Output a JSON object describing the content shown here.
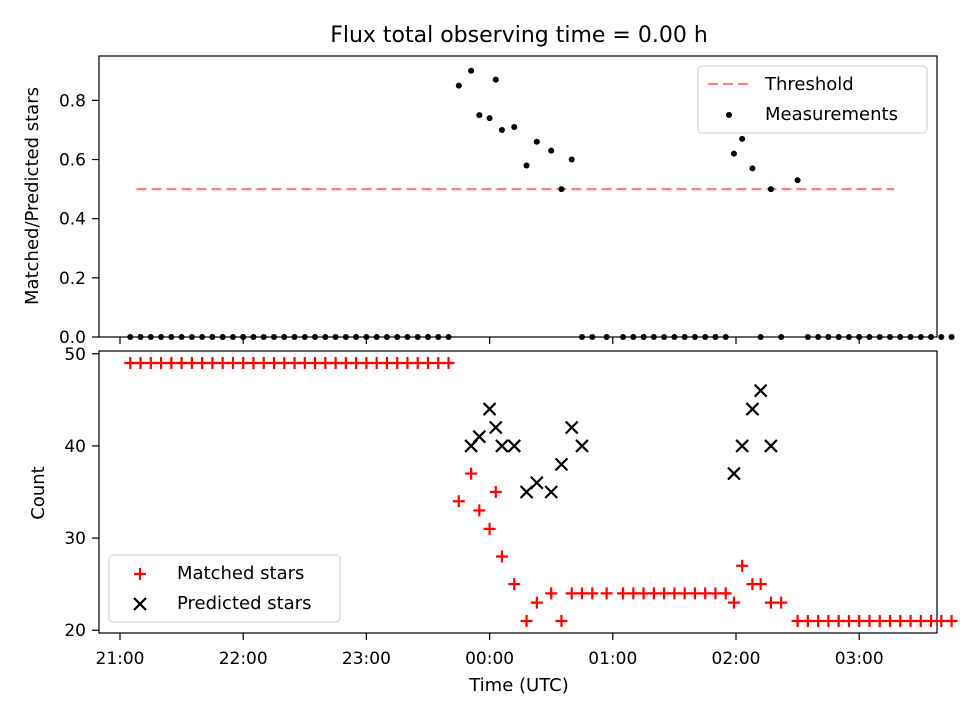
{
  "figure": {
    "title": "Flux total observing time = 0.00 h"
  },
  "chart_data": [
    {
      "type": "scatter",
      "title": "Flux total observing time = 0.00 h",
      "xlabel": "",
      "ylabel": "Matched/Predicted stars",
      "x_axis": "time (hours after 21:00 UTC, day wraps at 24:00)",
      "ylim": [
        0,
        0.95
      ],
      "yticks": [
        0.0,
        0.2,
        0.4,
        0.6,
        0.8
      ],
      "ytick_labels": [
        "0.0",
        "0.2",
        "0.4",
        "0.6",
        "0.8"
      ],
      "legend_position": "top-right",
      "legend": [
        {
          "label": "Threshold",
          "style": "dashed-line",
          "color": "#ff7f7f"
        },
        {
          "label": "Measurements",
          "style": "dot",
          "color": "#000000"
        }
      ],
      "threshold": {
        "y": 0.5,
        "x_start": "21:08",
        "x_end": "03:17",
        "color": "#ff7f7f"
      },
      "series": [
        {
          "name": "Measurements",
          "x": [
            "21:05",
            "21:10",
            "21:15",
            "21:20",
            "21:25",
            "21:30",
            "21:35",
            "21:40",
            "21:45",
            "21:50",
            "21:55",
            "22:00",
            "22:05",
            "22:10",
            "22:15",
            "22:20",
            "22:25",
            "22:30",
            "22:35",
            "22:40",
            "22:45",
            "22:50",
            "22:55",
            "23:00",
            "23:05",
            "23:10",
            "23:15",
            "23:20",
            "23:25",
            "23:30",
            "23:35",
            "23:40",
            "23:45",
            "23:51",
            "23:55",
            "00:00",
            "00:03",
            "00:06",
            "00:12",
            "00:18",
            "00:23",
            "00:30",
            "00:35",
            "00:40",
            "00:45",
            "00:50",
            "00:57",
            "01:05",
            "01:10",
            "01:15",
            "01:20",
            "01:25",
            "01:30",
            "01:35",
            "01:40",
            "01:45",
            "01:50",
            "01:55",
            "01:59",
            "02:03",
            "02:08",
            "02:12",
            "02:17",
            "02:22",
            "02:30",
            "02:35",
            "02:40",
            "02:45",
            "02:50",
            "02:55",
            "03:00",
            "03:05",
            "03:10",
            "03:15",
            "03:20",
            "03:25",
            "03:30",
            "03:35",
            "03:40",
            "03:45"
          ],
          "y": [
            0,
            0,
            0,
            0,
            0,
            0,
            0,
            0,
            0,
            0,
            0,
            0,
            0,
            0,
            0,
            0,
            0,
            0,
            0,
            0,
            0,
            0,
            0,
            0,
            0,
            0,
            0,
            0,
            0,
            0,
            0,
            0,
            0.85,
            0.9,
            0.75,
            0.74,
            0.87,
            0.7,
            0.71,
            0.58,
            0.66,
            0.63,
            0.5,
            0.6,
            0,
            0,
            0,
            0,
            0,
            0,
            0,
            0,
            0,
            0,
            0,
            0,
            0,
            0,
            0.62,
            0.67,
            0.57,
            0,
            0.5,
            0,
            0.53,
            0,
            0,
            0,
            0,
            0,
            0,
            0,
            0,
            0,
            0,
            0,
            0,
            0,
            0,
            0
          ]
        }
      ]
    },
    {
      "type": "scatter",
      "title": "",
      "xlabel": "Time (UTC)",
      "ylabel": "Count",
      "ylim": [
        19.7,
        50.3
      ],
      "yticks": [
        20,
        30,
        40,
        50
      ],
      "ytick_labels": [
        "20",
        "30",
        "40",
        "50"
      ],
      "xticks": [
        "21:00",
        "22:00",
        "23:00",
        "00:00",
        "01:00",
        "02:00",
        "03:00"
      ],
      "legend_position": "bottom-left",
      "legend": [
        {
          "label": "Matched stars",
          "marker": "plus",
          "color": "#ff0000"
        },
        {
          "label": "Predicted stars",
          "marker": "x",
          "color": "#000000"
        }
      ],
      "series": [
        {
          "name": "Matched stars",
          "color": "#ff0000",
          "x": [
            "21:05",
            "21:10",
            "21:15",
            "21:20",
            "21:25",
            "21:30",
            "21:35",
            "21:40",
            "21:45",
            "21:50",
            "21:55",
            "22:00",
            "22:05",
            "22:10",
            "22:15",
            "22:20",
            "22:25",
            "22:30",
            "22:35",
            "22:40",
            "22:45",
            "22:50",
            "22:55",
            "23:00",
            "23:05",
            "23:10",
            "23:15",
            "23:20",
            "23:25",
            "23:30",
            "23:35",
            "23:40",
            "23:45",
            "23:51",
            "23:55",
            "00:00",
            "00:03",
            "00:06",
            "00:12",
            "00:18",
            "00:23",
            "00:30",
            "00:35",
            "00:40",
            "00:45",
            "00:50",
            "00:57",
            "01:05",
            "01:10",
            "01:15",
            "01:20",
            "01:25",
            "01:30",
            "01:35",
            "01:40",
            "01:45",
            "01:50",
            "01:55",
            "01:59",
            "02:03",
            "02:08",
            "02:12",
            "02:17",
            "02:22",
            "02:30",
            "02:35",
            "02:40",
            "02:45",
            "02:50",
            "02:55",
            "03:00",
            "03:05",
            "03:10",
            "03:15",
            "03:20",
            "03:25",
            "03:30",
            "03:35",
            "03:40",
            "03:45"
          ],
          "y": [
            49,
            49,
            49,
            49,
            49,
            49,
            49,
            49,
            49,
            49,
            49,
            49,
            49,
            49,
            49,
            49,
            49,
            49,
            49,
            49,
            49,
            49,
            49,
            49,
            49,
            49,
            49,
            49,
            49,
            49,
            49,
            49,
            34,
            37,
            33,
            31,
            35,
            28,
            25,
            21,
            23,
            24,
            21,
            24,
            24,
            24,
            24,
            24,
            24,
            24,
            24,
            24,
            24,
            24,
            24,
            24,
            24,
            24,
            23,
            27,
            25,
            25,
            23,
            23,
            21,
            21,
            21,
            21,
            21,
            21,
            21,
            21,
            21,
            21,
            21,
            21,
            21,
            21,
            21,
            21
          ]
        },
        {
          "name": "Predicted stars",
          "color": "#000000",
          "x": [
            "23:51",
            "23:55",
            "00:00",
            "00:03",
            "00:06",
            "00:12",
            "00:18",
            "00:23",
            "00:30",
            "00:35",
            "00:40",
            "00:45",
            "01:59",
            "02:03",
            "02:08",
            "02:12",
            "02:17"
          ],
          "y": [
            40,
            41,
            44,
            42,
            40,
            40,
            35,
            36,
            35,
            38,
            42,
            40,
            37,
            40,
            44,
            46,
            40
          ]
        }
      ]
    }
  ]
}
